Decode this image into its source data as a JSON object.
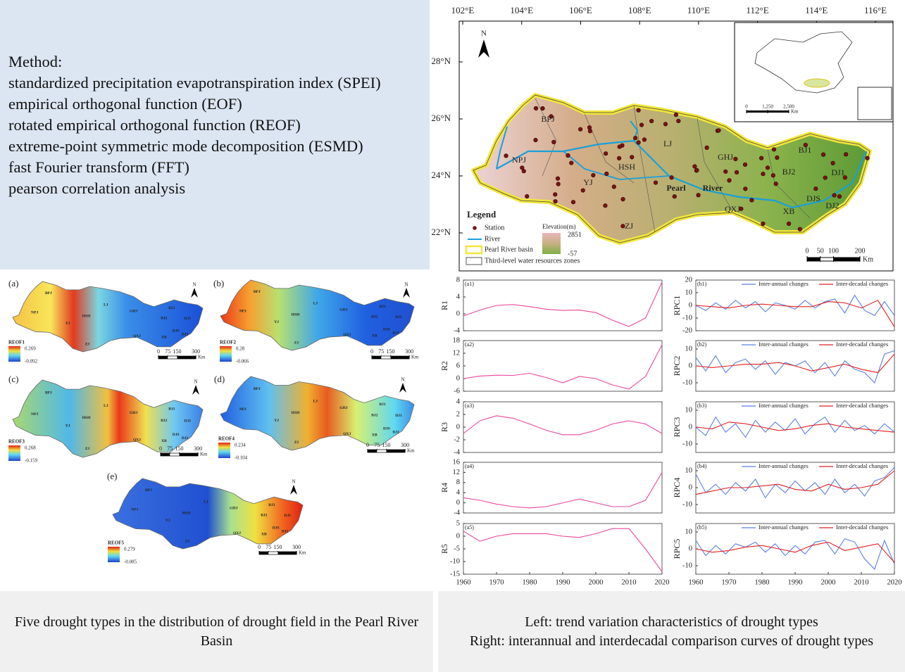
{
  "method": {
    "title": "Method:",
    "items": [
      "standardized precipitation evapotranspiration index (SPEI)",
      "empirical orthogonal function (EOF)",
      "rotated empirical orthogonal function (REOF)",
      "extreme-point symmetric mode decomposition (ESMD)",
      "fast Fourier transform (FFT)",
      "pearson correlation analysis"
    ]
  },
  "basin_map": {
    "lon_ticks": [
      {
        "value": 102,
        "label": "102°E"
      },
      {
        "value": 104,
        "label": "104°E"
      },
      {
        "value": 106,
        "label": "106°E"
      },
      {
        "value": 108,
        "label": "108°E"
      },
      {
        "value": 110,
        "label": "110°E"
      },
      {
        "value": 112,
        "label": "112°E"
      },
      {
        "value": 114,
        "label": "114°E"
      },
      {
        "value": 116,
        "label": "116°E"
      }
    ],
    "lat_ticks": [
      {
        "value": 28,
        "label": "28°N"
      },
      {
        "value": 26,
        "label": "26°N"
      },
      {
        "value": 24,
        "label": "24°N"
      },
      {
        "value": 22,
        "label": "22°N"
      }
    ],
    "north": "N",
    "zones": [
      "BPJ",
      "NPJ",
      "YJ",
      "HSH",
      "LJ",
      "GHJ",
      "BJ1",
      "BJ2",
      "DJ1",
      "DJS",
      "DJ2",
      "XB",
      "QXJ",
      "ZJ"
    ],
    "river_label": [
      "Pearl",
      "River"
    ],
    "legend": {
      "title": "Legend",
      "items": [
        "Station",
        "River",
        "Pearl River basin",
        "Third-level water resources zones"
      ],
      "elevation_title": "Elevation(m)",
      "elevation_max": 2851,
      "elevation_min": -57
    },
    "scale": {
      "ticks": [
        0,
        50,
        100,
        200
      ],
      "unit": "Km"
    },
    "inset_scale": {
      "ticks": [
        0,
        {
          "value": 1250,
          "label": "1,250"
        },
        {
          "value": 2500,
          "label": "2,500"
        }
      ],
      "unit": "Km"
    }
  },
  "reof_maps": {
    "zones": [
      "BPJ",
      "NPJ",
      "YJ",
      "HSH",
      "LJ",
      "GHJ",
      "BJ1",
      "BJ2",
      "DJ1",
      "DJS",
      "DJ2",
      "XB",
      "QXJ",
      "ZJ"
    ],
    "north": "N",
    "scale": {
      "ticks": [
        0,
        75,
        150,
        300
      ],
      "unit": "Km"
    },
    "panels": [
      {
        "label": "(a)",
        "name": "REOF1",
        "max": 0.269,
        "min": -0.092
      },
      {
        "label": "(b)",
        "name": "REOF2",
        "max": 0.28,
        "min": -0.066
      },
      {
        "label": "(c)",
        "name": "REOF3",
        "max": 0.268,
        "min": -0.159
      },
      {
        "label": "(d)",
        "name": "REOF4",
        "max": 0.234,
        "min": -0.104
      },
      {
        "label": "(e)",
        "name": "REOF5",
        "max": 0.279,
        "min": -0.085
      }
    ]
  },
  "chart_data": [
    {
      "type": "line",
      "panel_label": "(a1)",
      "y_label": "R1",
      "xlim": [
        1960,
        2020
      ],
      "ylim": [
        -4,
        8
      ],
      "yticks": [
        -4,
        0,
        4,
        8
      ],
      "series": [
        {
          "color": "#e8479c",
          "x": [
            1960,
            1965,
            1970,
            1975,
            1980,
            1985,
            1990,
            1995,
            2000,
            2005,
            2010,
            2015,
            2020
          ],
          "values": [
            -0.5,
            0.9,
            2,
            2.2,
            1.7,
            1.1,
            0.8,
            0.9,
            0.3,
            -1.5,
            -3,
            -1,
            7.5
          ]
        }
      ]
    },
    {
      "type": "line",
      "panel_label": "(a2)",
      "y_label": "R2",
      "xlim": [
        1960,
        2020
      ],
      "ylim": [
        -6,
        18
      ],
      "yticks": [
        -6,
        0,
        6,
        12,
        18
      ],
      "series": [
        {
          "color": "#e8479c",
          "x": [
            1960,
            1965,
            1970,
            1975,
            1980,
            1985,
            1990,
            1995,
            2000,
            2005,
            2010,
            2015,
            2020
          ],
          "values": [
            0,
            1.2,
            1.6,
            1.5,
            2.5,
            0.5,
            -2,
            1,
            0,
            -3,
            -5,
            1,
            16
          ]
        }
      ]
    },
    {
      "type": "line",
      "panel_label": "(a3)",
      "y_label": "R3",
      "xlim": [
        1960,
        2020
      ],
      "ylim": [
        -4,
        4
      ],
      "yticks": [
        -4,
        -2,
        0,
        2,
        4
      ],
      "series": [
        {
          "color": "#e8479c",
          "x": [
            1960,
            1965,
            1970,
            1975,
            1980,
            1985,
            1990,
            1995,
            2000,
            2005,
            2010,
            2015,
            2020
          ],
          "values": [
            -1,
            1,
            1.8,
            1.4,
            0.5,
            -0.5,
            -1.2,
            -1.2,
            -0.5,
            0.5,
            1,
            0.5,
            -1
          ]
        }
      ]
    },
    {
      "type": "line",
      "panel_label": "(a4)",
      "y_label": "R4",
      "xlim": [
        1960,
        2020
      ],
      "ylim": [
        -4,
        16
      ],
      "yticks": [
        -4,
        0,
        4,
        8,
        12,
        16
      ],
      "series": [
        {
          "color": "#e8479c",
          "x": [
            1960,
            1965,
            1970,
            1975,
            1980,
            1985,
            1990,
            1995,
            2000,
            2005,
            2010,
            2015,
            2020
          ],
          "values": [
            2,
            1,
            -0.5,
            -1.5,
            -2,
            -1.5,
            0,
            1.5,
            0,
            -1.5,
            -1.5,
            1,
            12
          ]
        }
      ]
    },
    {
      "type": "line",
      "panel_label": "(a5)",
      "y_label": "R5",
      "xlim": [
        1960,
        2020
      ],
      "ylim": [
        -15,
        5
      ],
      "yticks": [
        -15,
        -10,
        -5,
        0,
        5
      ],
      "xticks": [
        1960,
        1970,
        1980,
        1990,
        2000,
        2010,
        2020
      ],
      "series": [
        {
          "color": "#e8479c",
          "x": [
            1960,
            1965,
            1970,
            1975,
            1980,
            1985,
            1990,
            1995,
            2000,
            2005,
            2010,
            2015,
            2020
          ],
          "values": [
            2,
            -2,
            0,
            1,
            1,
            1,
            0,
            -0.5,
            1,
            3,
            3,
            -5,
            -14
          ]
        }
      ]
    },
    {
      "type": "line",
      "panel_label": "(b1)",
      "y_label": "RPC1",
      "xlim": [
        1960,
        2020
      ],
      "ylim": [
        -20,
        20
      ],
      "yticks": [
        -20,
        -10,
        0,
        10,
        20
      ],
      "series": [
        {
          "name": "Inter-annual changes",
          "color": "#5b7fe0",
          "x": [
            1960,
            1963,
            1966,
            1969,
            1972,
            1975,
            1978,
            1981,
            1984,
            1987,
            1990,
            1993,
            1996,
            1999,
            2002,
            2005,
            2008,
            2011,
            2014,
            2017,
            2020
          ],
          "values": [
            0,
            -4,
            2,
            -3,
            4,
            -2,
            3,
            -5,
            2,
            0,
            -3,
            4,
            -2,
            3,
            5,
            -6,
            8,
            -4,
            -8,
            3,
            -8
          ]
        },
        {
          "name": "Inter-decadal changes",
          "color": "#e02020",
          "x": [
            1960,
            1965,
            1970,
            1975,
            1980,
            1985,
            1990,
            1995,
            2000,
            2005,
            2010,
            2015,
            2020
          ],
          "values": [
            0,
            -1,
            -2,
            0,
            1,
            0,
            -1,
            -1,
            3,
            2,
            -2,
            4,
            -17
          ]
        }
      ]
    },
    {
      "type": "line",
      "panel_label": "(b2)",
      "y_label": "RPC2",
      "xlim": [
        1960,
        2020
      ],
      "ylim": [
        -15,
        15
      ],
      "yticks": [
        -10,
        0,
        10
      ],
      "series": [
        {
          "name": "Inter-annual changes",
          "color": "#5b7fe0",
          "x": [
            1960,
            1963,
            1966,
            1969,
            1972,
            1975,
            1978,
            1981,
            1984,
            1987,
            1990,
            1993,
            1996,
            1999,
            2002,
            2005,
            2008,
            2011,
            2014,
            2017,
            2020
          ],
          "values": [
            5,
            -3,
            6,
            -4,
            2,
            4,
            -2,
            3,
            -5,
            2,
            0,
            3,
            -4,
            2,
            -6,
            3,
            -2,
            -4,
            -10,
            7,
            9
          ]
        },
        {
          "name": "Inter-decadal changes",
          "color": "#e02020",
          "x": [
            1960,
            1965,
            1970,
            1975,
            1980,
            1985,
            1990,
            1995,
            2000,
            2005,
            2010,
            2015,
            2020
          ],
          "values": [
            0,
            -1,
            0,
            1,
            1,
            2,
            0,
            -3,
            -1,
            1,
            -2,
            -4,
            7
          ]
        }
      ]
    },
    {
      "type": "line",
      "panel_label": "(b3)",
      "y_label": "RPC3",
      "xlim": [
        1960,
        2020
      ],
      "ylim": [
        -15,
        15
      ],
      "yticks": [
        -10,
        0,
        10
      ],
      "series": [
        {
          "name": "Inter-annual changes",
          "color": "#5b7fe0",
          "x": [
            1960,
            1963,
            1966,
            1969,
            1972,
            1975,
            1978,
            1981,
            1984,
            1987,
            1990,
            1993,
            1996,
            1999,
            2002,
            2005,
            2008,
            2011,
            2014,
            2017,
            2020
          ],
          "values": [
            0,
            -5,
            6,
            -3,
            2,
            -6,
            4,
            -3,
            3,
            -2,
            5,
            -4,
            2,
            6,
            -3,
            4,
            -2,
            1,
            -4,
            2,
            -3
          ]
        },
        {
          "name": "Inter-decadal changes",
          "color": "#e02020",
          "x": [
            1960,
            1965,
            1970,
            1975,
            1980,
            1985,
            1990,
            1995,
            2000,
            2005,
            2010,
            2015,
            2020
          ],
          "values": [
            0,
            -1,
            3,
            2,
            0,
            -2,
            -1,
            1,
            2,
            0,
            -1,
            -2,
            -3
          ]
        }
      ]
    },
    {
      "type": "line",
      "panel_label": "(b4)",
      "y_label": "RPC4",
      "xlim": [
        1960,
        2020
      ],
      "ylim": [
        -15,
        15
      ],
      "yticks": [
        -10,
        0,
        10
      ],
      "series": [
        {
          "name": "Inter-annual changes",
          "color": "#5b7fe0",
          "x": [
            1960,
            1963,
            1966,
            1969,
            1972,
            1975,
            1978,
            1981,
            1984,
            1987,
            1990,
            1993,
            1996,
            1999,
            2002,
            2005,
            2008,
            2011,
            2014,
            2017,
            2020
          ],
          "values": [
            8,
            -3,
            2,
            -4,
            3,
            -2,
            5,
            -6,
            2,
            -3,
            4,
            -2,
            3,
            -4,
            5,
            -3,
            2,
            -5,
            4,
            6,
            12
          ]
        },
        {
          "name": "Inter-decadal changes",
          "color": "#e02020",
          "x": [
            1960,
            1965,
            1970,
            1975,
            1980,
            1985,
            1990,
            1995,
            2000,
            2005,
            2010,
            2015,
            2020
          ],
          "values": [
            -4,
            -2,
            0,
            0,
            1,
            2,
            -1,
            -2,
            2,
            -1,
            0,
            2,
            10
          ]
        }
      ]
    },
    {
      "type": "line",
      "panel_label": "(b5)",
      "y_label": "RPC5",
      "xlim": [
        1960,
        2020
      ],
      "ylim": [
        -15,
        15
      ],
      "yticks": [
        -10,
        0,
        10
      ],
      "xticks": [
        1960,
        1970,
        1980,
        1990,
        2000,
        2010,
        2020
      ],
      "series": [
        {
          "name": "Inter-annual changes",
          "color": "#5b7fe0",
          "x": [
            1960,
            1963,
            1966,
            1969,
            1972,
            1975,
            1978,
            1981,
            1984,
            1987,
            1990,
            1993,
            1996,
            1999,
            2002,
            2005,
            2008,
            2011,
            2014,
            2017,
            2020
          ],
          "values": [
            5,
            -4,
            2,
            -3,
            3,
            1,
            4,
            -2,
            3,
            -4,
            2,
            -3,
            4,
            5,
            -3,
            6,
            4,
            -6,
            -12,
            5,
            -9
          ]
        },
        {
          "name": "Inter-decadal changes",
          "color": "#e02020",
          "x": [
            1960,
            1965,
            1970,
            1975,
            1980,
            1985,
            1990,
            1995,
            2000,
            2005,
            2010,
            2015,
            2020
          ],
          "values": [
            0,
            -2,
            -1,
            1,
            2,
            0,
            -2,
            2,
            4,
            -1,
            1,
            3,
            -8
          ]
        }
      ]
    }
  ],
  "captions": {
    "left": "Five drought types in the distribution of drought field in the Pearl River Basin",
    "right": [
      "Left: trend variation characteristics of drought types",
      "Right: interannual and interdecadal comparison curves of drought types"
    ]
  }
}
